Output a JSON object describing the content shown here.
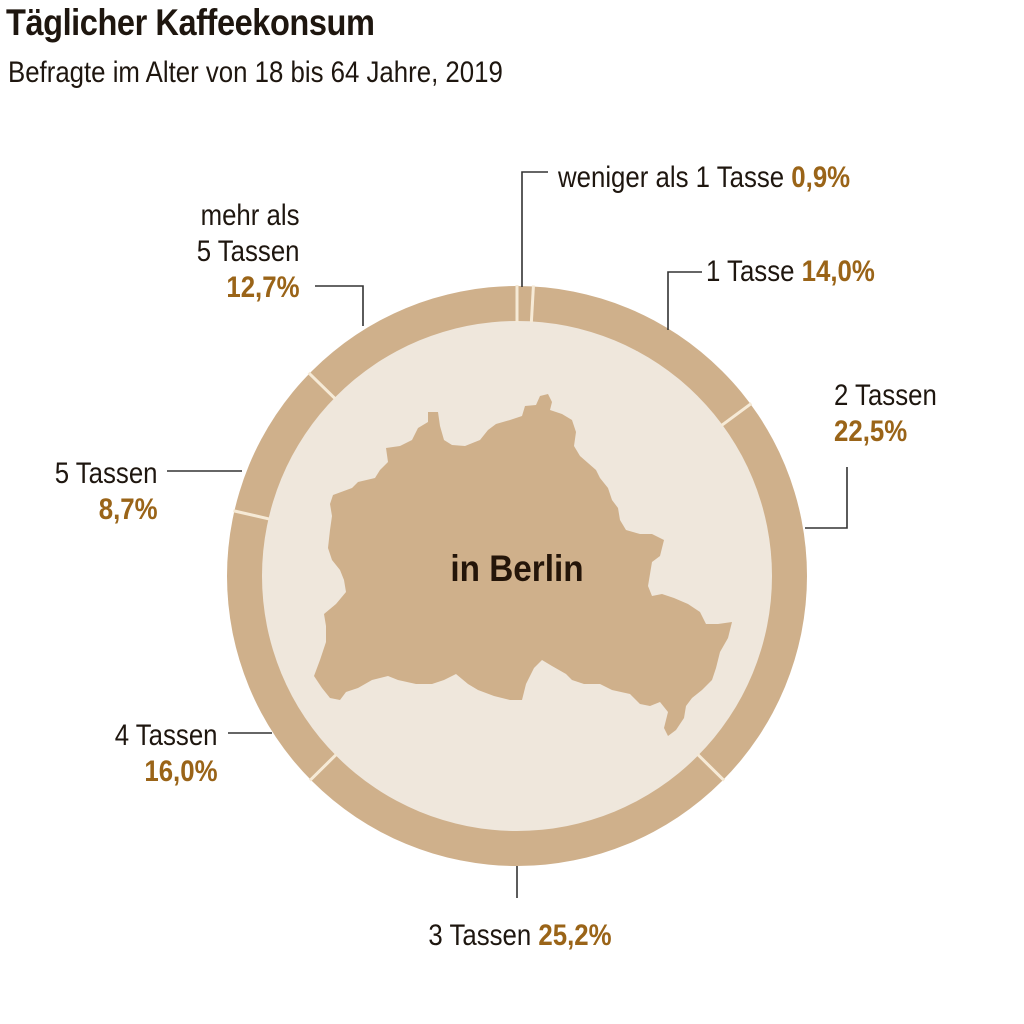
{
  "header": {
    "title": "Täglicher Kaffeekonsum",
    "subtitle": "Befragte im Alter von 18 bis 64 Jahre, 2019"
  },
  "center_label": "in Berlin",
  "colors": {
    "ring": "#cfb08b",
    "inner": "#efe7dc",
    "map": "#cfb08b",
    "separator": "#f6ead6",
    "percent": "#9a6418",
    "text": "#1e160f",
    "leader": "#333333"
  },
  "labels": {
    "less_than_1": {
      "text": "weniger als 1 Tasse",
      "value": "0,9%"
    },
    "one": {
      "text": "1 Tasse",
      "value": "14,0%"
    },
    "two": {
      "text": "2 Tassen",
      "value": "22,5%"
    },
    "three": {
      "text": "3 Tassen",
      "value": "25,2%"
    },
    "four": {
      "text": "4 Tassen",
      "value": "16,0%"
    },
    "five": {
      "text": "5 Tassen",
      "value": "8,7%"
    },
    "more_than_5": {
      "line1": "mehr als",
      "line2": "5 Tassen",
      "value": "12,7%"
    }
  },
  "chart_data": {
    "type": "pie",
    "title": "Täglicher Kaffeekonsum",
    "subtitle": "Befragte im Alter von 18 bis 64 Jahre, 2019",
    "center_text": "in Berlin",
    "donut": true,
    "start_angle": "top, clockwise",
    "categories": [
      "weniger als 1 Tasse",
      "1 Tasse",
      "2 Tassen",
      "3 Tassen",
      "4 Tassen",
      "5 Tassen",
      "mehr als 5 Tassen"
    ],
    "values": [
      0.9,
      14.0,
      22.5,
      25.2,
      16.0,
      8.7,
      12.7
    ],
    "unit": "%"
  }
}
